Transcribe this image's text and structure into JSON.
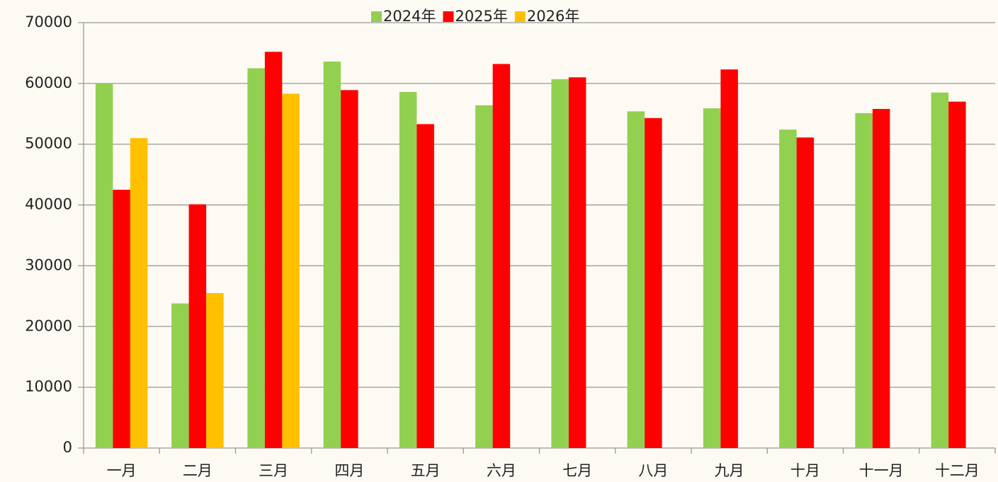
{
  "chart_data": {
    "type": "bar",
    "categories": [
      "一月",
      "二月",
      "三月",
      "四月",
      "五月",
      "六月",
      "七月",
      "八月",
      "九月",
      "十月",
      "十一月",
      "十二月"
    ],
    "series": [
      {
        "name": "2024年",
        "color": "#92d050",
        "values": [
          60000,
          23800,
          62500,
          63600,
          58600,
          56400,
          60700,
          55400,
          55900,
          52400,
          55100,
          58500
        ]
      },
      {
        "name": "2025年",
        "color": "#ff0000",
        "values": [
          42500,
          40100,
          65200,
          58900,
          53300,
          63200,
          61000,
          54300,
          62300,
          51100,
          55800,
          57000
        ]
      },
      {
        "name": "2026年",
        "color": "#ffc000",
        "values": [
          51000,
          25500,
          58300,
          null,
          null,
          null,
          null,
          null,
          null,
          null,
          null,
          null
        ]
      }
    ],
    "ylim": [
      0,
      70000
    ],
    "yticks": [
      0,
      10000,
      20000,
      30000,
      40000,
      50000,
      60000,
      70000
    ],
    "grid": true,
    "legend": "top"
  }
}
